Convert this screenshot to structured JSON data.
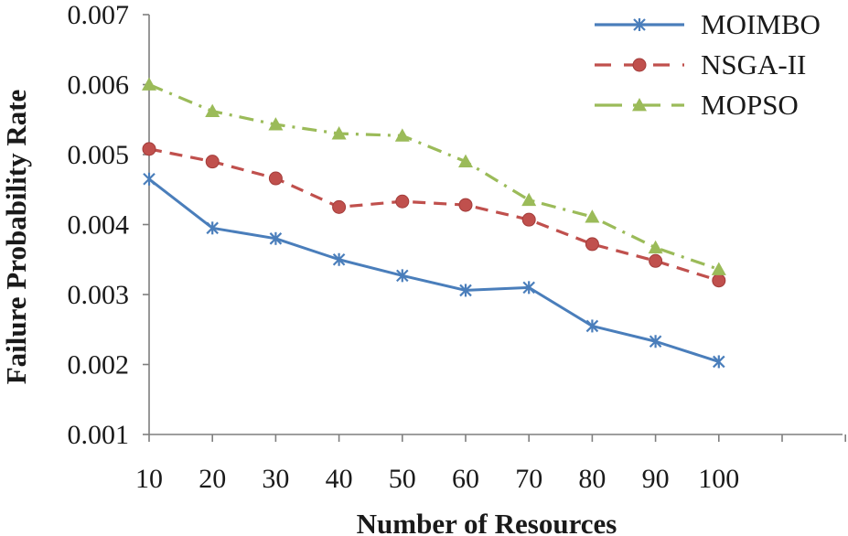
{
  "chart_data": {
    "type": "line",
    "title": "",
    "xlabel": "Number of Resources",
    "ylabel": "Failure Probability Rate",
    "x": [
      10,
      20,
      30,
      40,
      50,
      60,
      70,
      80,
      90,
      100
    ],
    "x_tick_labels": [
      "10",
      "20",
      "30",
      "40",
      "50",
      "60",
      "70",
      "80",
      "90",
      "100"
    ],
    "y_tick_labels": [
      "0.001",
      "0.002",
      "0.003",
      "0.004",
      "0.005",
      "0.006",
      "0.007"
    ],
    "ylim": [
      0.001,
      0.007
    ],
    "grid": false,
    "legend_position": "top-right",
    "series": [
      {
        "name": "MOIMBO",
        "color": "#4a7ebb",
        "line_style": "solid",
        "marker": "star",
        "values": [
          0.00465,
          0.00395,
          0.0038,
          0.0035,
          0.00327,
          0.00306,
          0.0031,
          0.00255,
          0.00233,
          0.00204
        ]
      },
      {
        "name": "NSGA-II",
        "color": "#c0504d",
        "line_style": "dashed",
        "marker": "circle",
        "values": [
          0.00508,
          0.0049,
          0.00466,
          0.00425,
          0.00433,
          0.00428,
          0.00407,
          0.00372,
          0.00348,
          0.0032
        ]
      },
      {
        "name": "MOPSO",
        "color": "#9bbb59",
        "line_style": "dash-dot",
        "marker": "triangle",
        "values": [
          0.006,
          0.00562,
          0.00543,
          0.0053,
          0.00527,
          0.0049,
          0.00435,
          0.00411,
          0.00367,
          0.00336
        ]
      }
    ]
  }
}
